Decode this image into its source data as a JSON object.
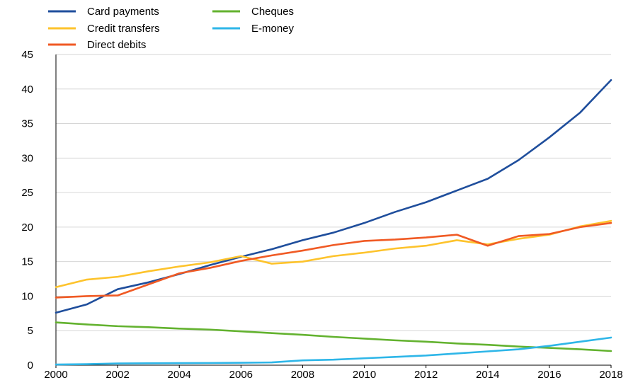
{
  "chart_data": {
    "type": "line",
    "title": "",
    "xlabel": "",
    "ylabel": "",
    "x": [
      2000,
      2001,
      2002,
      2003,
      2004,
      2005,
      2006,
      2007,
      2008,
      2009,
      2010,
      2011,
      2012,
      2013,
      2014,
      2015,
      2016,
      2017,
      2018
    ],
    "xlim": [
      2000,
      2018
    ],
    "ylim": [
      0,
      45
    ],
    "x_ticks": [
      "2000",
      "2002",
      "2004",
      "2006",
      "2008",
      "2010",
      "2012",
      "2014",
      "2016",
      "2018"
    ],
    "y_ticks": [
      "0",
      "5",
      "10",
      "15",
      "20",
      "25",
      "30",
      "35",
      "40",
      "45"
    ],
    "grid": "horizontal",
    "legend_position": "top-left",
    "series": [
      {
        "name": "Card payments",
        "color": "#1f4e9c",
        "values": [
          7.6,
          8.8,
          11.0,
          12.0,
          13.2,
          14.5,
          15.7,
          16.8,
          18.1,
          19.2,
          20.6,
          22.2,
          23.6,
          25.3,
          27.0,
          29.7,
          33.0,
          36.6,
          41.3
        ]
      },
      {
        "name": "Credit transfers",
        "color": "#fdc32c",
        "values": [
          11.3,
          12.4,
          12.8,
          13.6,
          14.3,
          14.9,
          15.8,
          14.7,
          15.0,
          15.8,
          16.3,
          16.9,
          17.3,
          18.1,
          17.5,
          18.3,
          18.9,
          20.1,
          20.9
        ]
      },
      {
        "name": "Direct debits",
        "color": "#f05a24",
        "values": [
          9.8,
          10.0,
          10.1,
          11.7,
          13.3,
          14.1,
          15.1,
          15.9,
          16.6,
          17.4,
          18.0,
          18.2,
          18.5,
          18.9,
          17.3,
          18.7,
          19.0,
          20.0,
          20.6
        ]
      },
      {
        "name": "Cheques",
        "color": "#63b22f",
        "values": [
          6.2,
          5.9,
          5.65,
          5.5,
          5.3,
          5.15,
          4.9,
          4.65,
          4.4,
          4.1,
          3.85,
          3.6,
          3.4,
          3.15,
          2.95,
          2.7,
          2.5,
          2.3,
          2.05
        ]
      },
      {
        "name": "E-money",
        "color": "#2eb6e8",
        "values": [
          0.1,
          0.15,
          0.25,
          0.28,
          0.3,
          0.32,
          0.35,
          0.4,
          0.7,
          0.8,
          1.0,
          1.2,
          1.4,
          1.7,
          2.0,
          2.3,
          2.8,
          3.4,
          4.0
        ]
      }
    ]
  }
}
